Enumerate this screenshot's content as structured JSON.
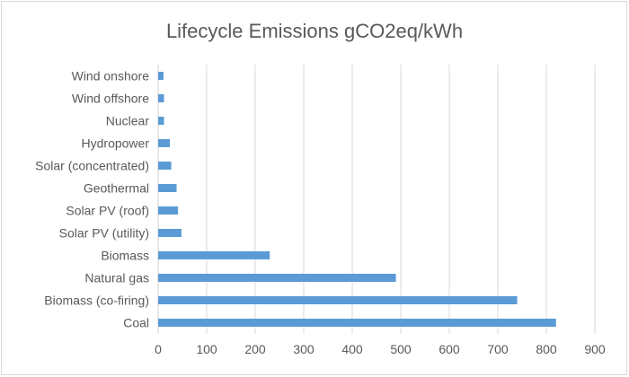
{
  "chart_data": {
    "type": "bar",
    "orientation": "horizontal",
    "title": "Lifecycle Emissions gCO2eq/kWh",
    "xlabel": "",
    "ylabel": "",
    "categories": [
      "Wind onshore",
      "Wind offshore",
      "Nuclear",
      "Hydropower",
      "Solar (concentrated)",
      "Geothermal",
      "Solar PV (roof)",
      "Solar PV (utility)",
      "Biomass",
      "Natural gas",
      "Biomass (co-firing)",
      "Coal"
    ],
    "values": [
      11,
      12,
      12,
      24,
      27,
      38,
      41,
      48,
      230,
      490,
      740,
      820
    ],
    "xlim": [
      0,
      900
    ],
    "ticks": [
      "0",
      "100",
      "200",
      "300",
      "400",
      "500",
      "600",
      "700",
      "800",
      "900"
    ],
    "grid": true,
    "legend": "none",
    "bar_color": "#5b9bd5",
    "grid_color": "#d9d9d9",
    "text_color": "#595959"
  }
}
